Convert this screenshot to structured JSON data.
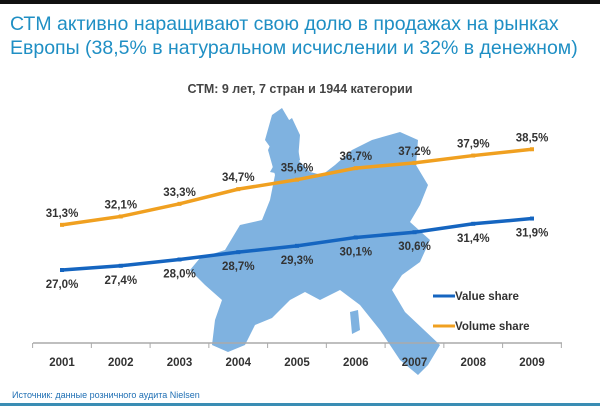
{
  "title_line1": "СТМ активно наращивают свою долю в продажах на рынках",
  "title_line2": "Европы (38,5% в натуральном исчислении и 32% в денежном)",
  "source": "Источник: данные розничного аудита Nielsen",
  "colors": {
    "value": "#1565c0",
    "volume": "#f0a020",
    "map": "#7fb2e0",
    "title": "#1f8fc4"
  },
  "chart_data": {
    "type": "line",
    "title": "СТМ: 9 лет, 7 стран и 1944 категории",
    "categories": [
      "2001",
      "2002",
      "2003",
      "2004",
      "2005",
      "2006",
      "2007",
      "2008",
      "2009"
    ],
    "series": [
      {
        "name": "Value share",
        "values": [
          27.0,
          27.4,
          28.0,
          28.7,
          29.3,
          30.1,
          30.6,
          31.4,
          31.9
        ],
        "labels": [
          "27,0%",
          "27,4%",
          "28,0%",
          "28,7%",
          "29,3%",
          "30,1%",
          "30,6%",
          "31,4%",
          "31,9%"
        ]
      },
      {
        "name": "Volume share",
        "values": [
          31.3,
          32.1,
          33.3,
          34.7,
          35.6,
          36.7,
          37.2,
          37.9,
          38.5
        ],
        "labels": [
          "31,3%",
          "32,1%",
          "33,3%",
          "34,7%",
          "35,6%",
          "36,7%",
          "37,2%",
          "37,9%",
          "38,5%"
        ]
      }
    ],
    "legend": "right",
    "grid": false
  }
}
